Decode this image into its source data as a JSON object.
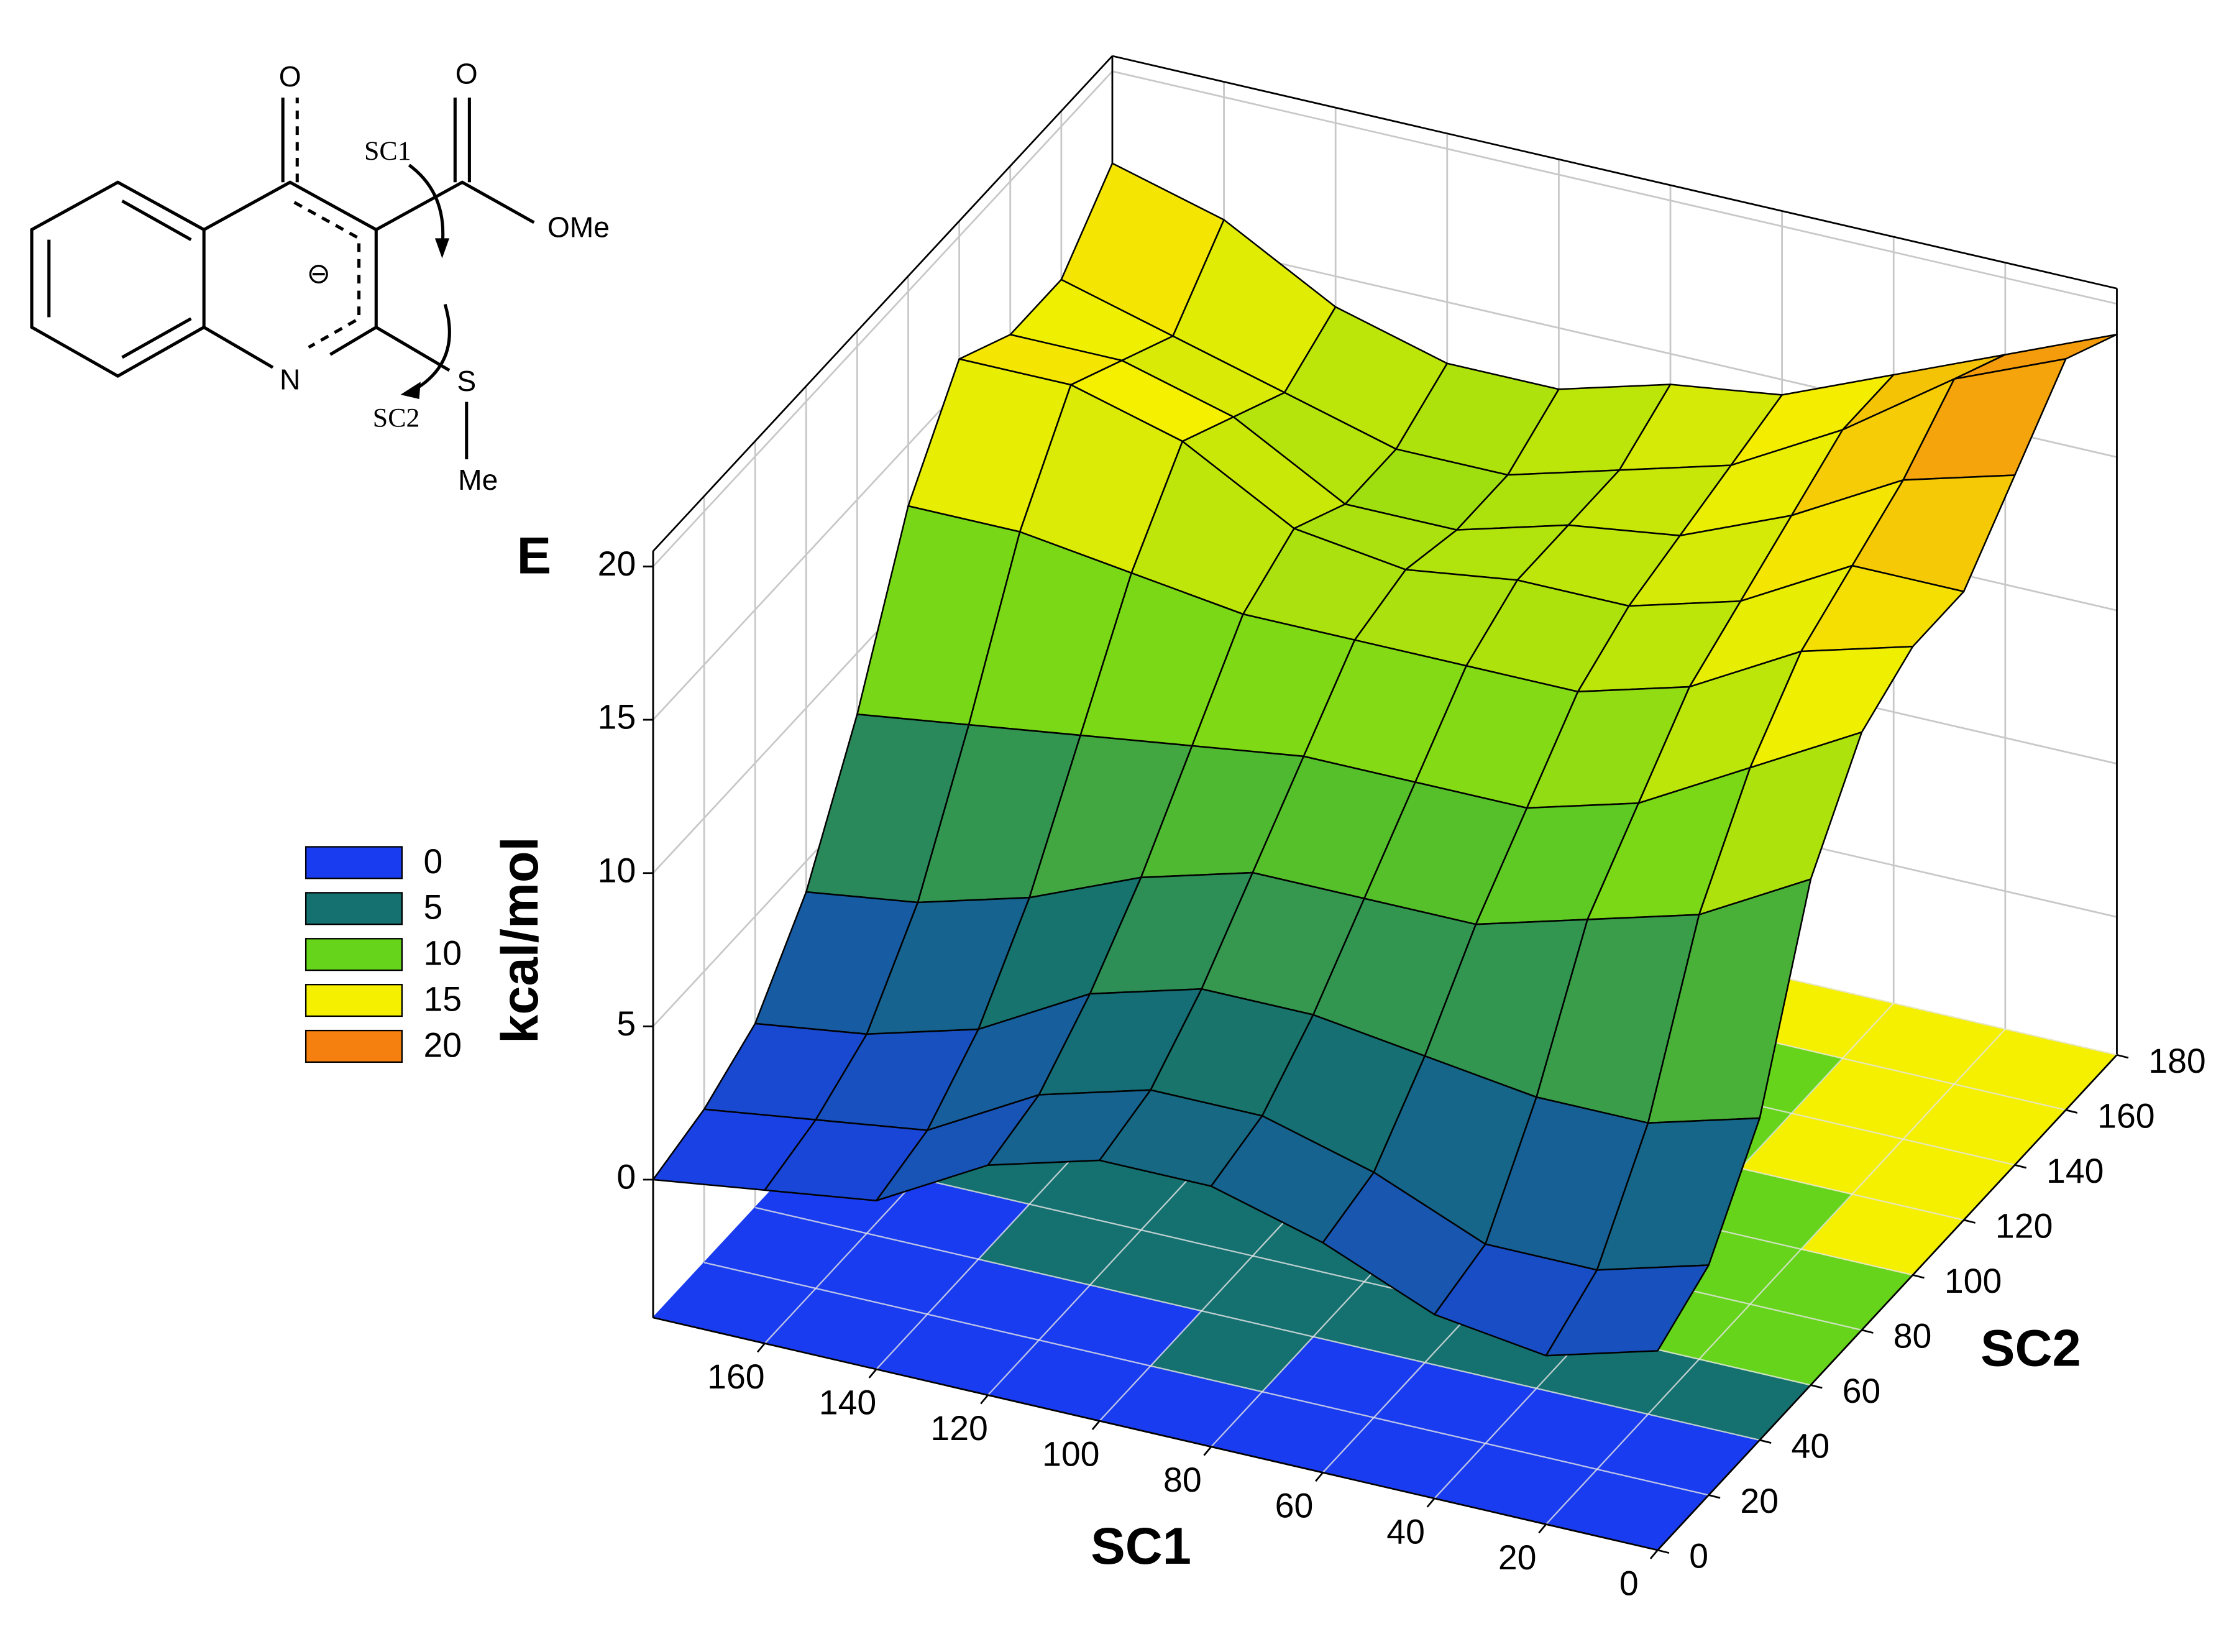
{
  "chart_data": {
    "type": "surface3d",
    "xlabel": "SC1",
    "ylabel": "SC2",
    "zlabel": "E",
    "zunit": "kcal/mol",
    "x": [
      0,
      20,
      40,
      60,
      80,
      100,
      120,
      140,
      160,
      180
    ],
    "y": [
      0,
      20,
      40,
      60,
      80,
      100,
      120,
      140,
      160,
      180
    ],
    "z": [
      [
        2,
        1,
        1.5,
        3,
        4,
        4,
        3,
        1,
        0.5,
        0
      ],
      [
        3,
        2,
        2,
        3.5,
        4.5,
        4.5,
        3.5,
        1.5,
        1,
        0.5
      ],
      [
        6,
        5,
        5,
        5.5,
        6,
        6,
        5,
        3,
        2,
        1.5
      ],
      [
        12,
        10,
        9,
        8,
        8,
        8,
        7,
        5.5,
        4.5,
        4
      ],
      [
        15,
        13,
        11,
        10,
        10,
        10,
        9.5,
        9,
        8.5,
        8
      ],
      [
        16,
        15,
        13,
        12,
        12,
        12,
        12,
        12.5,
        13,
        13
      ],
      [
        16,
        16,
        14,
        13,
        13,
        12.5,
        13,
        15,
        16,
        16
      ],
      [
        18,
        17,
        15,
        13.5,
        13,
        12,
        12,
        14,
        15,
        15
      ],
      [
        20,
        18.5,
        16,
        14,
        13,
        12,
        12,
        13,
        14,
        15
      ],
      [
        19,
        17.5,
        16,
        14.5,
        14,
        13,
        13,
        14,
        16,
        17
      ]
    ],
    "xlim": [
      0,
      180
    ],
    "ylim": [
      0,
      180
    ],
    "zlim": [
      -4.5,
      20.5
    ],
    "xticks": [
      0,
      20,
      40,
      60,
      80,
      100,
      120,
      140,
      160
    ],
    "yticks": [
      0,
      20,
      40,
      60,
      80,
      100,
      120,
      140,
      160,
      180
    ],
    "zticks": [
      0,
      5,
      10,
      15,
      20
    ],
    "grid": true,
    "colorbar": {
      "levels": [
        0,
        5,
        10,
        15,
        20
      ],
      "colors": [
        "#1a3cf0",
        "#157070",
        "#66d41a",
        "#f5f000",
        "#f58010"
      ]
    }
  },
  "structure": {
    "keto_oxygen": "O",
    "ester_oxygen": "O",
    "ester_group": "OMe",
    "nitrogen": "N",
    "sulfur": "S",
    "methyl": "Me",
    "charge": "⊖",
    "rotor_1": "SC1",
    "rotor_2": "SC2"
  }
}
